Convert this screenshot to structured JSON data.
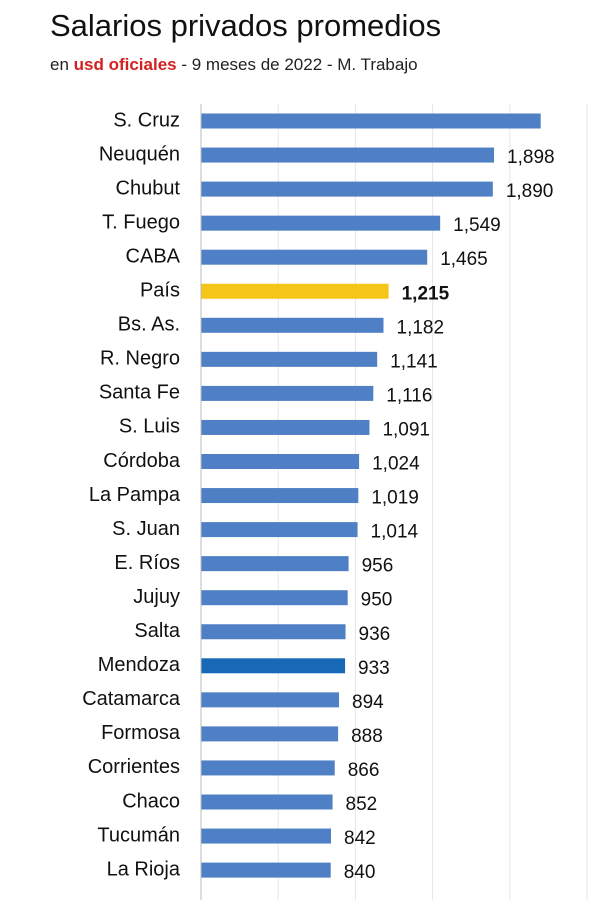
{
  "chart_data": {
    "type": "bar",
    "orientation": "horizontal",
    "title": "Salarios privados promedios",
    "subtitle": [
      {
        "text": "en ",
        "color": "#222222",
        "bold": false
      },
      {
        "text": "usd oficiales",
        "color": "#d42020",
        "bold": true
      },
      {
        "text": " - 9 meses de 2022 - M. Trabajo",
        "color": "#222222",
        "bold": false
      }
    ],
    "categories": [
      "S. Cruz",
      "Neuquén",
      "Chubut",
      "T. Fuego",
      "CABA",
      "País",
      "Bs. As.",
      "R. Negro",
      "Santa Fe",
      "S. Luis",
      "Córdoba",
      "La Pampa",
      "S. Juan",
      "E. Ríos",
      "Jujuy",
      "Salta",
      "Mendoza",
      "Catamarca",
      "Formosa",
      "Corrientes",
      "Chaco",
      "Tucumán",
      "La Rioja"
    ],
    "values": [
      2200,
      1898,
      1890,
      1549,
      1465,
      1215,
      1182,
      1141,
      1116,
      1091,
      1024,
      1019,
      1014,
      956,
      950,
      936,
      933,
      894,
      888,
      866,
      852,
      842,
      840
    ],
    "value_labels": [
      null,
      "1,898",
      "1,890",
      "1,549",
      "1,465",
      "1,215",
      "1,182",
      "1,141",
      "1,116",
      "1,091",
      "1,024",
      "1,019",
      "1,014",
      "956",
      "950",
      "936",
      "933",
      "894",
      "888",
      "866",
      "852",
      "842",
      "840"
    ],
    "value_label_bold": [
      false,
      false,
      false,
      false,
      false,
      true,
      false,
      false,
      false,
      false,
      false,
      false,
      false,
      false,
      false,
      false,
      false,
      false,
      false,
      false,
      false,
      false,
      false
    ],
    "colors": [
      "#4f7fc4",
      "#4f7fc4",
      "#4f7fc4",
      "#4f7fc4",
      "#4f7fc4",
      "#f5c518",
      "#4f7fc4",
      "#4f7fc4",
      "#4f7fc4",
      "#4f7fc4",
      "#4f7fc4",
      "#4f7fc4",
      "#4f7fc4",
      "#4f7fc4",
      "#4f7fc4",
      "#4f7fc4",
      "#1769b8",
      "#4f7fc4",
      "#4f7fc4",
      "#4f7fc4",
      "#4f7fc4",
      "#4f7fc4",
      "#4f7fc4"
    ],
    "xlim": [
      0,
      2500
    ],
    "xticks": [
      0,
      500,
      1000,
      1500,
      2000,
      2500
    ],
    "grid": true
  }
}
